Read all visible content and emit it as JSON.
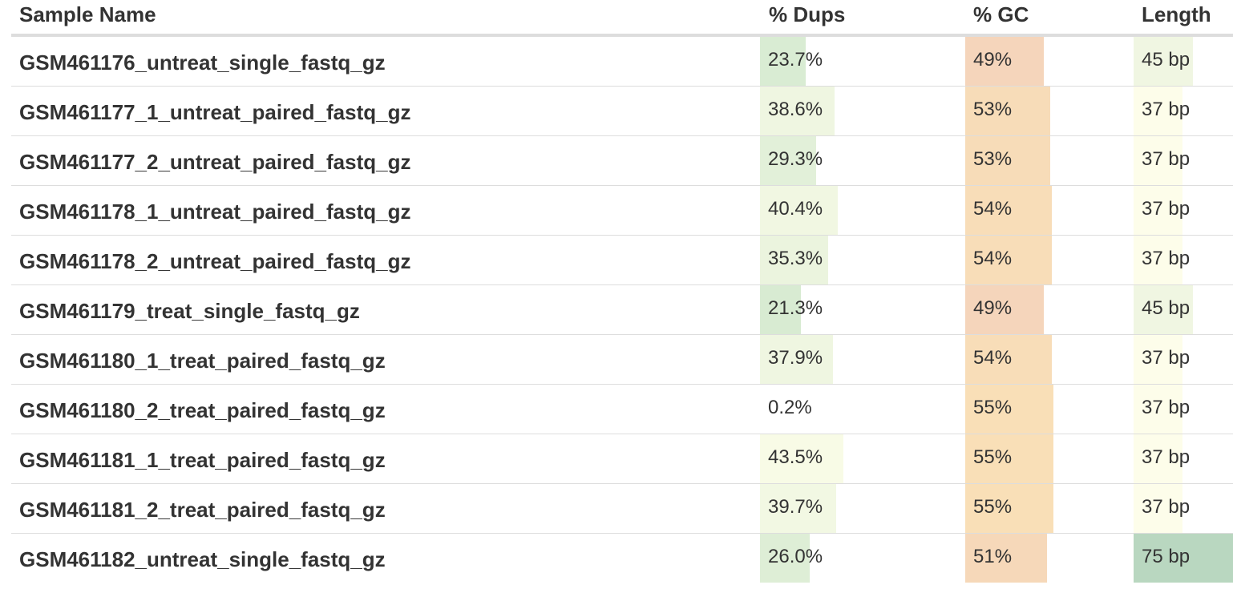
{
  "table": {
    "headers": {
      "sample": "Sample Name",
      "dups": "% Dups",
      "gc": "% GC",
      "length": "Length"
    },
    "rows": [
      {
        "sample": "GSM461176_untreat_single_fastq_gz",
        "dups": "23.7%",
        "dups_value": 23.7,
        "dups_color": "#d9ecd3",
        "gc": "49%",
        "gc_value": 49,
        "gc_color": "#f5d5bb",
        "length": "45 bp",
        "length_value": 45,
        "length_color": "#f0f6e2"
      },
      {
        "sample": "GSM461177_1_untreat_paired_fastq_gz",
        "dups": "38.6%",
        "dups_value": 38.6,
        "dups_color": "#eff6e1",
        "gc": "53%",
        "gc_value": 53,
        "gc_color": "#f7dcb8",
        "length": "37 bp",
        "length_value": 37,
        "length_color": "#fdfdea"
      },
      {
        "sample": "GSM461177_2_untreat_paired_fastq_gz",
        "dups": "29.3%",
        "dups_value": 29.3,
        "dups_color": "#e2f0d9",
        "gc": "53%",
        "gc_value": 53,
        "gc_color": "#f7dcb8",
        "length": "37 bp",
        "length_value": 37,
        "length_color": "#fdfdea"
      },
      {
        "sample": "GSM461178_1_untreat_paired_fastq_gz",
        "dups": "40.4%",
        "dups_value": 40.4,
        "dups_color": "#f1f7e2",
        "gc": "54%",
        "gc_value": 54,
        "gc_color": "#f8ddb8",
        "length": "37 bp",
        "length_value": 37,
        "length_color": "#fdfdea"
      },
      {
        "sample": "GSM461178_2_untreat_paired_fastq_gz",
        "dups": "35.3%",
        "dups_value": 35.3,
        "dups_color": "#ebf4de",
        "gc": "54%",
        "gc_value": 54,
        "gc_color": "#f8ddb8",
        "length": "37 bp",
        "length_value": 37,
        "length_color": "#fdfdea"
      },
      {
        "sample": "GSM461179_treat_single_fastq_gz",
        "dups": "21.3%",
        "dups_value": 21.3,
        "dups_color": "#d8ebd2",
        "gc": "49%",
        "gc_value": 49,
        "gc_color": "#f5d5bb",
        "length": "45 bp",
        "length_value": 45,
        "length_color": "#f0f6e2"
      },
      {
        "sample": "GSM461180_1_treat_paired_fastq_gz",
        "dups": "37.9%",
        "dups_value": 37.9,
        "dups_color": "#eff6e1",
        "gc": "54%",
        "gc_value": 54,
        "gc_color": "#f8ddb8",
        "length": "37 bp",
        "length_value": 37,
        "length_color": "#fdfdea"
      },
      {
        "sample": "GSM461180_2_treat_paired_fastq_gz",
        "dups": "0.2%",
        "dups_value": 0.2,
        "dups_color": "#ffffff",
        "gc": "55%",
        "gc_value": 55,
        "gc_color": "#f9dfb7",
        "length": "37 bp",
        "length_value": 37,
        "length_color": "#fdfdea"
      },
      {
        "sample": "GSM461181_1_treat_paired_fastq_gz",
        "dups": "43.5%",
        "dups_value": 43.5,
        "dups_color": "#f8fbe6",
        "gc": "55%",
        "gc_value": 55,
        "gc_color": "#f9dfb7",
        "length": "37 bp",
        "length_value": 37,
        "length_color": "#fdfdea"
      },
      {
        "sample": "GSM461181_2_treat_paired_fastq_gz",
        "dups": "39.7%",
        "dups_value": 39.7,
        "dups_color": "#f2f8e3",
        "gc": "55%",
        "gc_value": 55,
        "gc_color": "#f9dfb7",
        "length": "37 bp",
        "length_value": 37,
        "length_color": "#fdfdea"
      },
      {
        "sample": "GSM461182_untreat_single_fastq_gz",
        "dups": "26.0%",
        "dups_value": 26.0,
        "dups_color": "#deeed6",
        "gc": "51%",
        "gc_value": 51,
        "gc_color": "#f6d8b9",
        "length": "75 bp",
        "length_value": 75,
        "length_color": "#b9d7c0"
      }
    ]
  }
}
